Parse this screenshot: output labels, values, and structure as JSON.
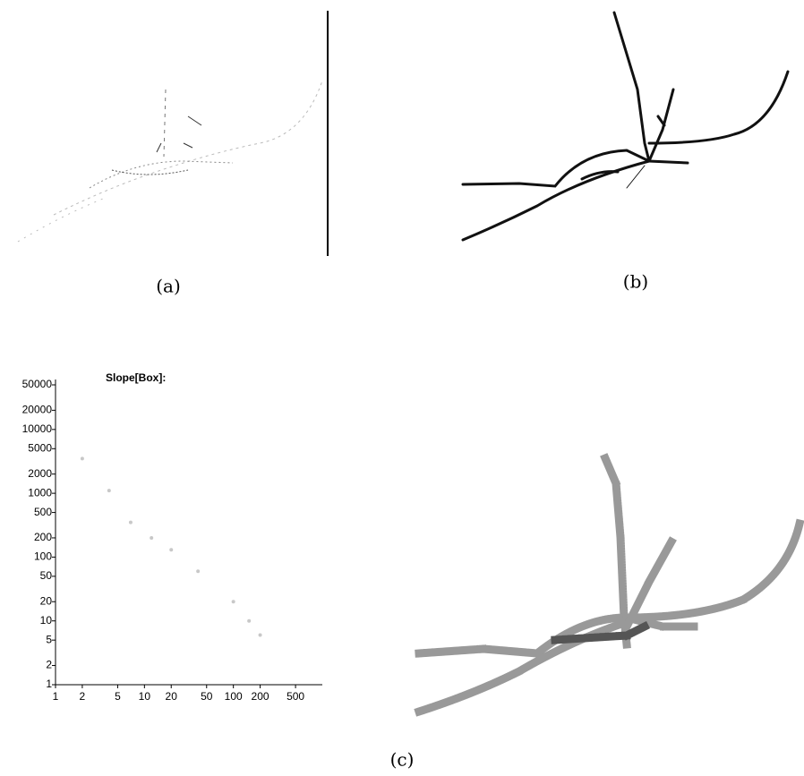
{
  "captions": {
    "a": "(a)",
    "b": "(b)",
    "c": "(c)"
  },
  "chart_data": {
    "type": "scatter",
    "title": "Slope[Box]:",
    "x": [
      2,
      4,
      7,
      12,
      20,
      40,
      100,
      150,
      200
    ],
    "values": [
      3500,
      1100,
      350,
      200,
      130,
      60,
      20,
      10,
      6
    ],
    "color": "#c8c8c8",
    "xscale": "log",
    "yscale": "log",
    "xlim": [
      1,
      1000
    ],
    "ylim": [
      1,
      50000
    ],
    "xticks": [
      1,
      2,
      5,
      10,
      20,
      50,
      100,
      200,
      500
    ],
    "yticks": [
      1,
      2,
      5,
      10,
      20,
      50,
      100,
      200,
      500,
      1000,
      2000,
      5000,
      10000,
      20000,
      50000
    ]
  }
}
